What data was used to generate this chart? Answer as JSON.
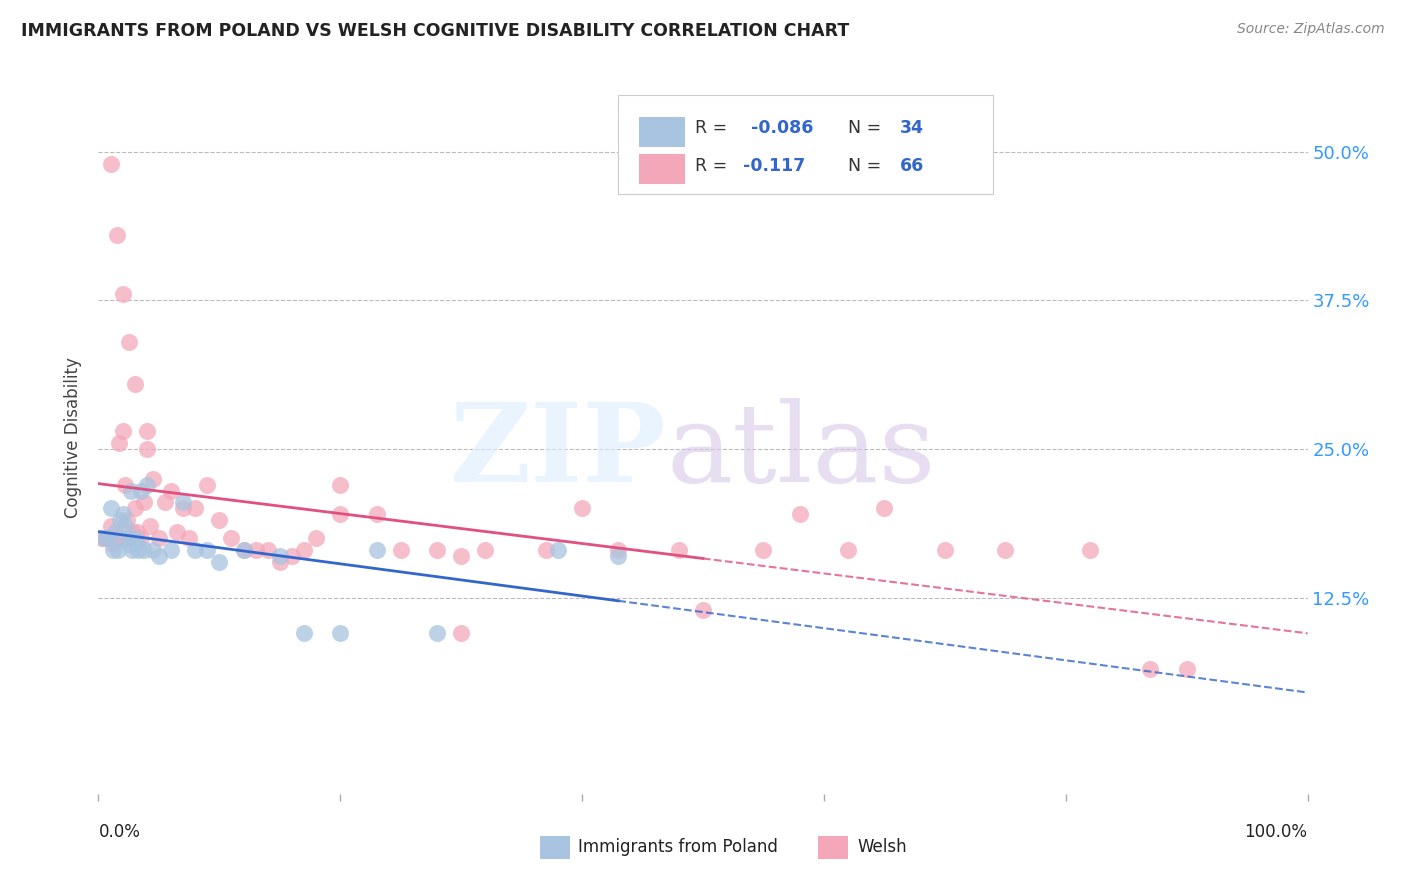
{
  "title": "IMMIGRANTS FROM POLAND VS WELSH COGNITIVE DISABILITY CORRELATION CHART",
  "source": "Source: ZipAtlas.com",
  "ylabel": "Cognitive Disability",
  "ytick_labels": [
    "12.5%",
    "25.0%",
    "37.5%",
    "50.0%"
  ],
  "ytick_values": [
    0.125,
    0.25,
    0.375,
    0.5
  ],
  "xlim": [
    0.0,
    1.0
  ],
  "ylim": [
    -0.04,
    0.56
  ],
  "color_poland": "#a8c4e0",
  "color_welsh": "#f4a7b9",
  "color_trend_poland": "#3366cc",
  "color_trend_welsh": "#e05080",
  "poland_x": [
    0.005,
    0.008,
    0.01,
    0.012,
    0.014,
    0.016,
    0.018,
    0.02,
    0.022,
    0.024,
    0.025,
    0.027,
    0.028,
    0.03,
    0.032,
    0.033,
    0.035,
    0.038,
    0.04,
    0.045,
    0.05,
    0.06,
    0.07,
    0.08,
    0.09,
    0.1,
    0.12,
    0.15,
    0.17,
    0.2,
    0.23,
    0.28,
    0.38,
    0.43
  ],
  "poland_y": [
    0.175,
    0.175,
    0.2,
    0.165,
    0.18,
    0.165,
    0.19,
    0.195,
    0.185,
    0.175,
    0.17,
    0.215,
    0.165,
    0.175,
    0.17,
    0.165,
    0.215,
    0.165,
    0.22,
    0.165,
    0.16,
    0.165,
    0.205,
    0.165,
    0.165,
    0.155,
    0.165,
    0.16,
    0.095,
    0.095,
    0.165,
    0.095,
    0.165,
    0.16
  ],
  "welsh_x": [
    0.003,
    0.005,
    0.007,
    0.008,
    0.01,
    0.012,
    0.015,
    0.017,
    0.018,
    0.02,
    0.022,
    0.024,
    0.026,
    0.028,
    0.03,
    0.032,
    0.035,
    0.038,
    0.04,
    0.043,
    0.045,
    0.05,
    0.055,
    0.06,
    0.065,
    0.07,
    0.075,
    0.08,
    0.09,
    0.1,
    0.11,
    0.12,
    0.13,
    0.14,
    0.15,
    0.16,
    0.17,
    0.18,
    0.2,
    0.23,
    0.25,
    0.28,
    0.3,
    0.32,
    0.37,
    0.4,
    0.43,
    0.48,
    0.5,
    0.55,
    0.58,
    0.62,
    0.65,
    0.7,
    0.75,
    0.82,
    0.87,
    0.9,
    0.01,
    0.015,
    0.02,
    0.025,
    0.03,
    0.04,
    0.2,
    0.3
  ],
  "welsh_y": [
    0.175,
    0.175,
    0.175,
    0.175,
    0.185,
    0.17,
    0.175,
    0.255,
    0.175,
    0.265,
    0.22,
    0.19,
    0.175,
    0.18,
    0.2,
    0.18,
    0.175,
    0.205,
    0.25,
    0.185,
    0.225,
    0.175,
    0.205,
    0.215,
    0.18,
    0.2,
    0.175,
    0.2,
    0.22,
    0.19,
    0.175,
    0.165,
    0.165,
    0.165,
    0.155,
    0.16,
    0.165,
    0.175,
    0.22,
    0.195,
    0.165,
    0.165,
    0.16,
    0.165,
    0.165,
    0.2,
    0.165,
    0.165,
    0.115,
    0.165,
    0.195,
    0.165,
    0.2,
    0.165,
    0.165,
    0.165,
    0.065,
    0.065,
    0.49,
    0.43,
    0.38,
    0.34,
    0.305,
    0.265,
    0.195,
    0.095
  ]
}
